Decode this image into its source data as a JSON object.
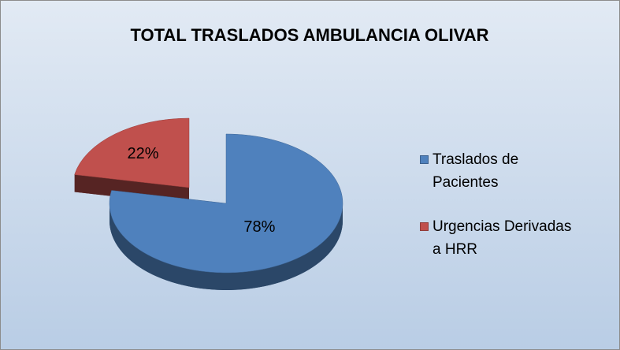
{
  "chart_data": {
    "type": "pie",
    "title": "TOTAL TRASLADOS AMBULANCIA OLIVAR",
    "categories": [
      "Traslados de Pacientes",
      "Urgencias Derivadas a HRR"
    ],
    "values": [
      78,
      22
    ],
    "value_labels": [
      "78%",
      "22%"
    ],
    "colors": [
      "#4f81bd",
      "#c0504d"
    ],
    "legend": "right"
  }
}
